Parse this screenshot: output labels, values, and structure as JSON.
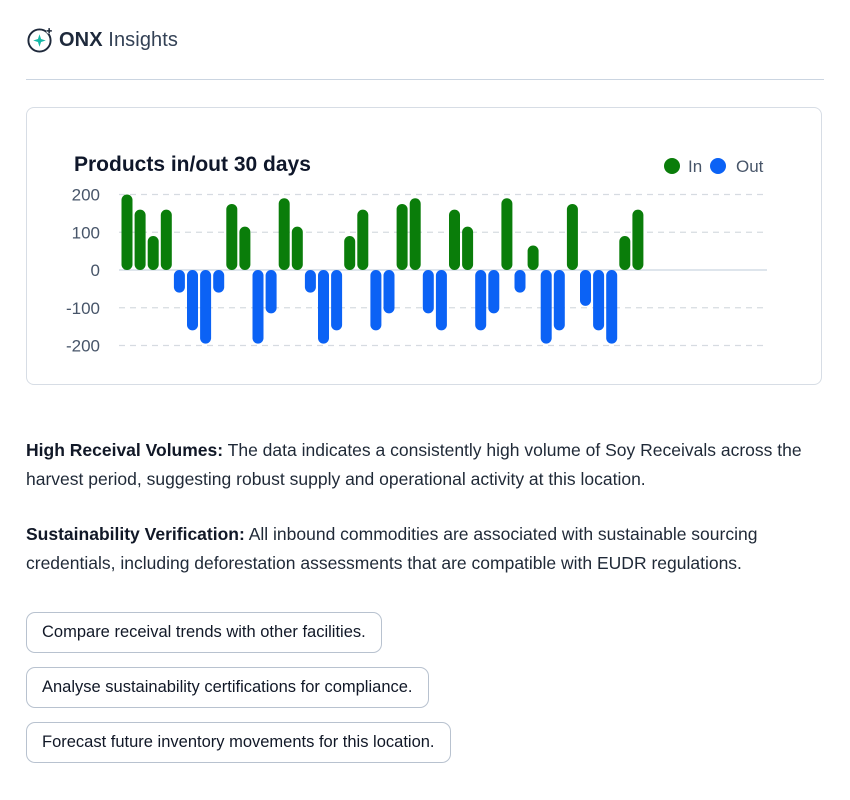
{
  "app": {
    "brand": "ONX",
    "brand_suffix": " Insights"
  },
  "chart_data": {
    "type": "bar",
    "title": "Products in/out 30 days",
    "legend_position": "top-right",
    "grid": true,
    "ylim": [
      -200,
      200
    ],
    "yticks": [
      "200",
      "100",
      "0",
      "-100",
      "-200"
    ],
    "series": [
      {
        "name": "In",
        "color": "#0a7d0a",
        "values": [
          200,
          160,
          90,
          160,
          0,
          0,
          0,
          0,
          175,
          115,
          0,
          0,
          190,
          115,
          0,
          0,
          0,
          90,
          160,
          0,
          0,
          175,
          190,
          0,
          0,
          160,
          115,
          0,
          0,
          190,
          0,
          65,
          0,
          0,
          175,
          0,
          0,
          0,
          90,
          160
        ]
      },
      {
        "name": "Out",
        "color": "#0b62f5",
        "values": [
          0,
          0,
          0,
          0,
          -60,
          -160,
          -195,
          -60,
          0,
          0,
          -195,
          -115,
          0,
          0,
          -60,
          -195,
          -160,
          0,
          0,
          -160,
          -115,
          0,
          0,
          -115,
          -160,
          0,
          0,
          -160,
          -115,
          0,
          -60,
          0,
          -195,
          -160,
          0,
          -95,
          -160,
          -195,
          0,
          0
        ]
      }
    ]
  },
  "insights": [
    {
      "heading": "High Receival Volumes:",
      "text": " The data indicates a consistently high volume of Soy Receivals across the harvest period, suggesting robust supply and operational activity at this location."
    },
    {
      "heading": "Sustainability Verification:",
      "text": " All inbound commodities are associated with sustainable sourcing credentials, including deforestation assessments that are compatible with EUDR regulations."
    }
  ],
  "suggestions": [
    "Compare receival trends with other facilities.",
    "Analyse sustainability certifications for compliance.",
    "Forecast future inventory movements for this location."
  ],
  "colors": {
    "in": "#0a7d0a",
    "out": "#0b62f5",
    "logo_accent": "#14b8a6"
  }
}
